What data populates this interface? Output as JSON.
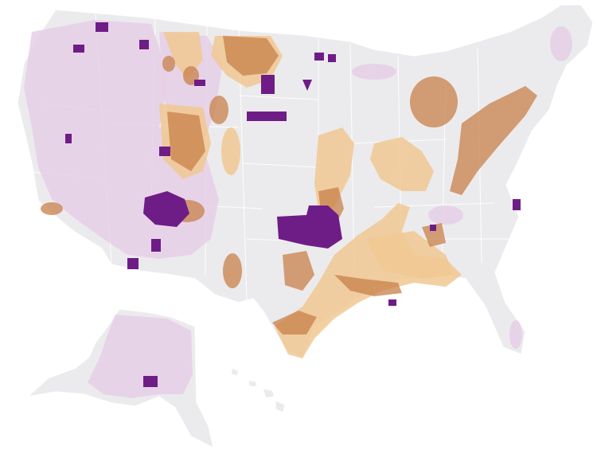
{
  "map": {
    "regions": [
      "contiguous-us",
      "alaska",
      "hawaii"
    ],
    "layers": [
      {
        "id": "land",
        "color": "#ebebed"
      },
      {
        "id": "federal-land",
        "color": "#e6cfe6"
      },
      {
        "id": "tribal-land",
        "color": "#6f1d86"
      },
      {
        "id": "shale-play-light",
        "color": "#f1c892"
      },
      {
        "id": "shale-play-dark",
        "color": "#c8804a"
      }
    ]
  }
}
